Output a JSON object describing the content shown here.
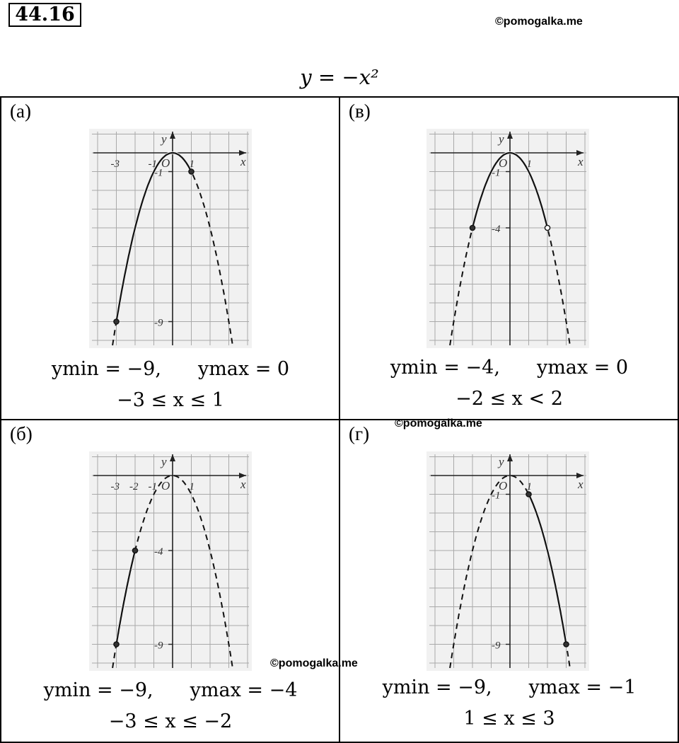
{
  "task_number": "44.16",
  "watermark": "©pomogalka.me",
  "formula": "y = −x²",
  "cells": [
    {
      "label": "(а)",
      "ymin": "ymin = −9,",
      "ymax": "ymax = 0",
      "range": "−3 ≤ x ≤ 1",
      "ticks_x": [
        "-3",
        "-1",
        "1"
      ],
      "ticks_y": [
        "-1",
        "-9"
      ],
      "solid_from": -3,
      "solid_to": 1,
      "dot_left": "filled",
      "dot_right": "filled"
    },
    {
      "label": "(в)",
      "ymin": "ymin = −4,",
      "ymax": "ymax = 0",
      "range": "−2 ≤ x < 2",
      "ticks_x": [
        "1"
      ],
      "ticks_y": [
        "-1",
        "-4"
      ],
      "solid_from": -2,
      "solid_to": 2,
      "dot_left": "filled",
      "dot_right": "open"
    },
    {
      "label": "(б)",
      "ymin": "ymin = −9,",
      "ymax": "ymax = −4",
      "range": "−3 ≤ x ≤ −2",
      "ticks_x": [
        "-3",
        "-2",
        "-1",
        "1"
      ],
      "ticks_y": [
        "-4",
        "-9"
      ],
      "solid_from": -3,
      "solid_to": -2,
      "dot_left": "filled",
      "dot_right": "filled"
    },
    {
      "label": "(г)",
      "ymin": "ymin = −9,",
      "ymax": "ymax = −1",
      "range": "1 ≤ x ≤ 3",
      "ticks_x": [
        "1"
      ],
      "ticks_y": [
        "-1",
        "-9"
      ],
      "solid_from": 1,
      "solid_to": 3,
      "dot_left": "filled",
      "dot_right": "filled"
    }
  ],
  "axis": {
    "x": "x",
    "y": "y",
    "origin": "O"
  }
}
